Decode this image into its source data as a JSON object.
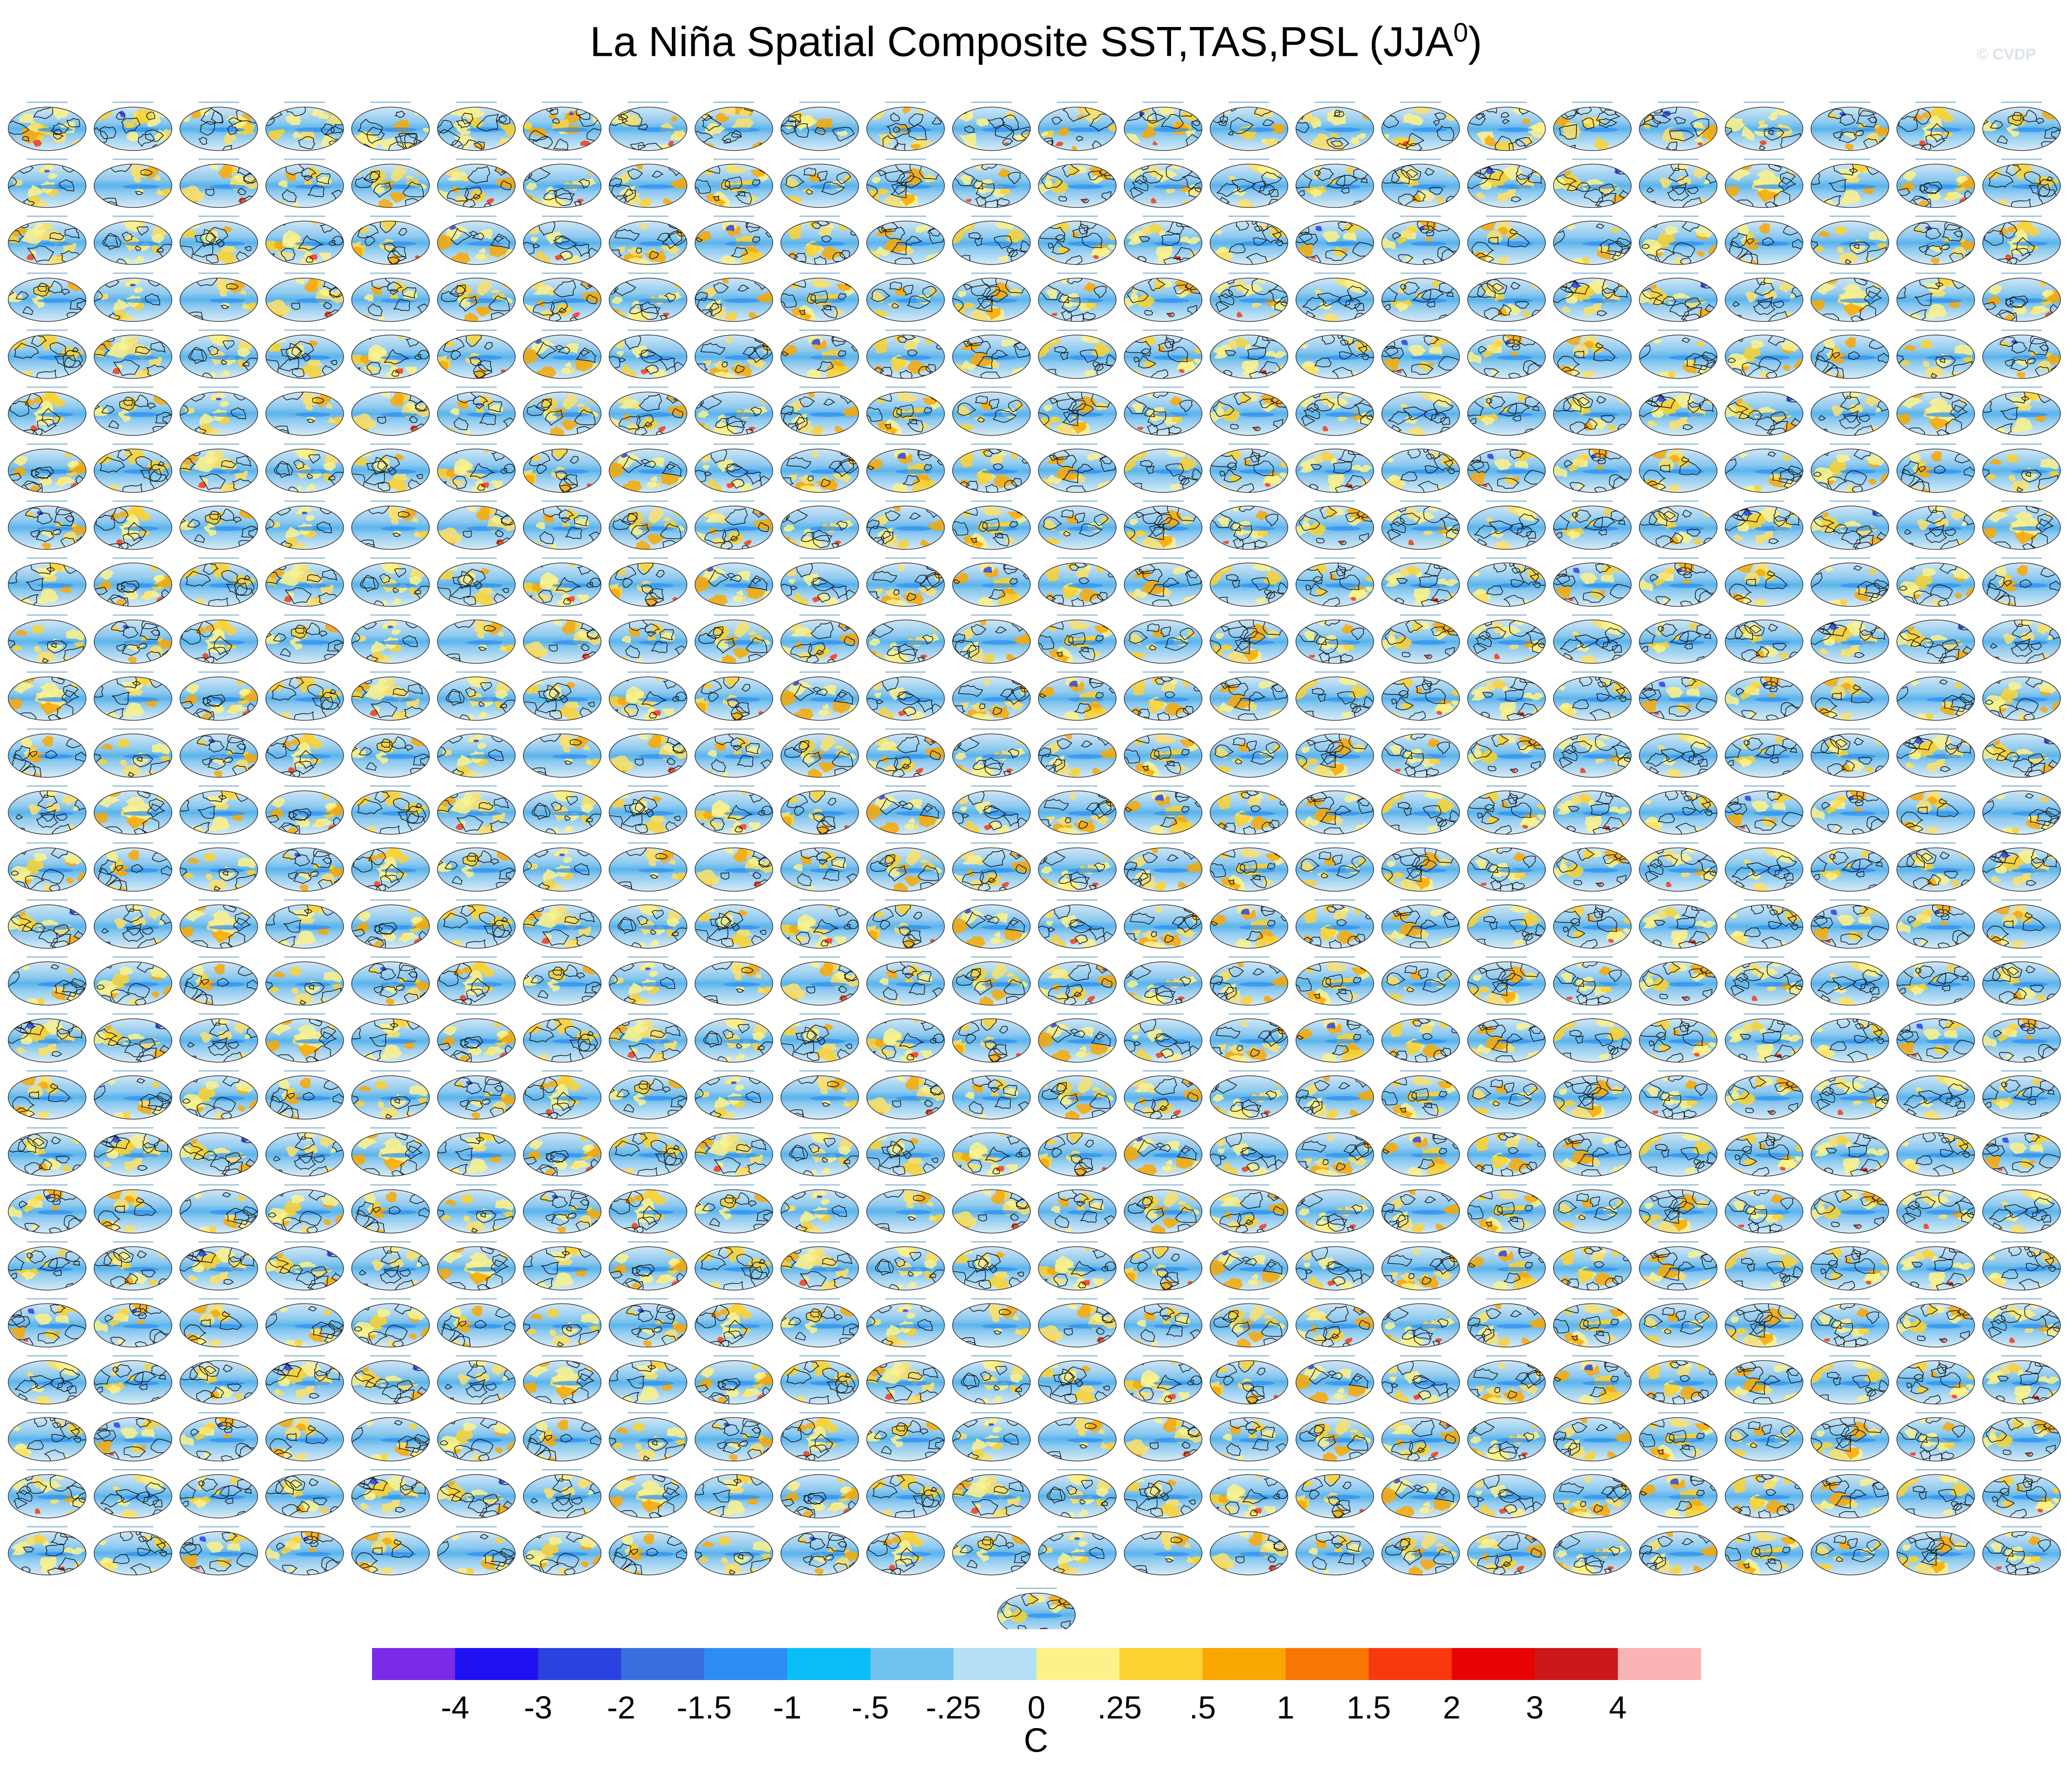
{
  "title_main": "La Niña Spatial Composite SST,TAS,PSL (JJA",
  "title_sup": "0",
  "title_close": ")",
  "watermark": "© CVDP",
  "chart_data": {
    "type": "heatmap",
    "description_of_panels": "small-multiples grid of global composite maps",
    "grid_rows": 26,
    "grid_cols": 24,
    "extra_panels": 1,
    "colorbar": {
      "unit": "C",
      "tick_labels": [
        "-4",
        "-3",
        "-2",
        "-1.5",
        "-1",
        "-.5",
        "-.25",
        "0",
        ".25",
        ".5",
        "1",
        "1.5",
        "2",
        "3",
        "4"
      ],
      "colors": [
        "#7b2ae6",
        "#1f12f2",
        "#2b41e0",
        "#3a6ee0",
        "#2c8ef2",
        "#09bff6",
        "#6ec2ef",
        "#b5dff2",
        "#fdf28a",
        "#fbd230",
        "#f9a802",
        "#f87604",
        "#f7390f",
        "#e80202",
        "#cc1818",
        "#fbb4b4"
      ]
    }
  }
}
